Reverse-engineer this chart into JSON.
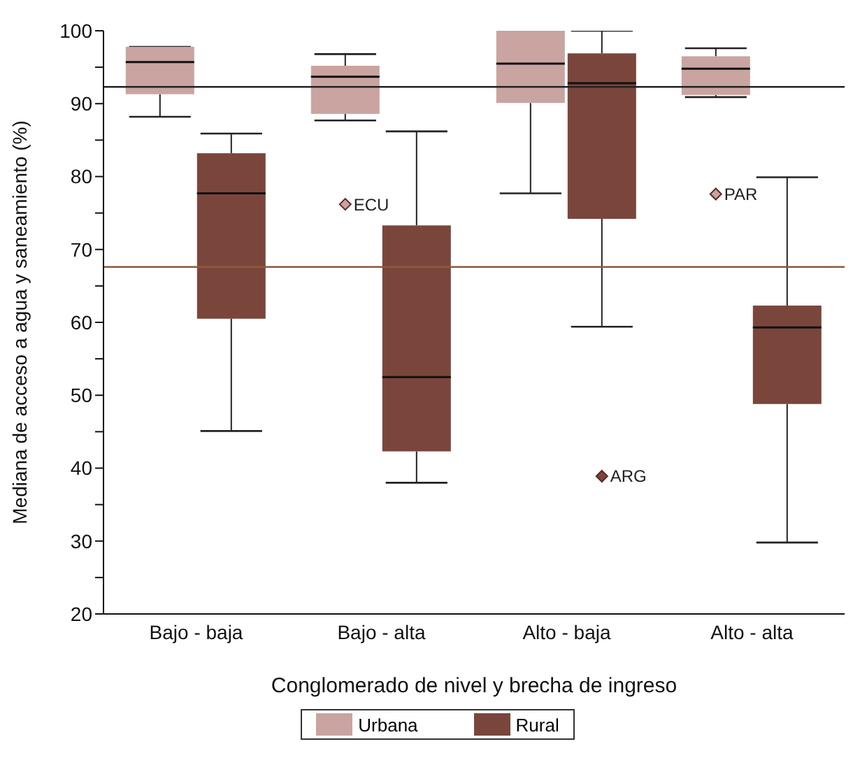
{
  "chart_data": {
    "type": "box",
    "xlabel": "Conglomerado de nivel y brecha de ingreso",
    "ylabel": "Mediana de acceso a agua y saneamiento (%)",
    "categories": [
      "Bajo - baja",
      "Bajo - alta",
      "Alto - baja",
      "Alto - alta"
    ],
    "series": [
      {
        "name": "Urbana",
        "color": "#c9a4a1",
        "boxes": [
          {
            "low": 88.2,
            "q1": 91.3,
            "median": 95.7,
            "q3": 97.8,
            "high": 97.8
          },
          {
            "low": 87.7,
            "q1": 88.6,
            "median": 93.7,
            "q3": 95.2,
            "high": 96.8,
            "outliers": [
              76.2
            ]
          },
          {
            "low": 77.7,
            "q1": 90.1,
            "median": 95.5,
            "q3": 100,
            "high": 100
          },
          {
            "low": 90.9,
            "q1": 91.2,
            "median": 94.8,
            "q3": 96.5,
            "high": 97.6,
            "outliers": [
              77.6
            ]
          }
        ]
      },
      {
        "name": "Rural",
        "color": "#7a463c",
        "boxes": [
          {
            "low": 45.1,
            "q1": 60.5,
            "median": 77.7,
            "q3": 83.2,
            "high": 85.9
          },
          {
            "low": 38.0,
            "q1": 42.3,
            "median": 52.5,
            "q3": 73.3,
            "high": 86.2
          },
          {
            "low": 59.4,
            "q1": 74.2,
            "median": 92.8,
            "q3": 96.9,
            "high": 100,
            "outliers": [
              38.9
            ]
          },
          {
            "low": 29.8,
            "q1": 48.8,
            "median": 59.3,
            "q3": 62.3,
            "high": 79.9
          }
        ]
      }
    ],
    "annotations": [
      "ECU",
      "PAR",
      "ARG"
    ],
    "ref_lines": [
      {
        "axis": "y",
        "value": 92.3,
        "color": "#222222"
      },
      {
        "axis": "y",
        "value": 67.6,
        "color": "#8b5a3c"
      }
    ],
    "ylim": [
      20,
      100
    ],
    "yticks": [
      20,
      {
        "value": 25,
        "label": null
      },
      30,
      {
        "value": 35,
        "label": null
      },
      40,
      {
        "value": 45,
        "label": null
      },
      50,
      {
        "value": 55,
        "label": null
      },
      60,
      {
        "value": 65,
        "label": null
      },
      70,
      {
        "value": 75,
        "label": null
      },
      80,
      {
        "value": 85,
        "label": null
      },
      90,
      {
        "value": 95,
        "label": null
      },
      100
    ],
    "grid": false,
    "legend": "bottom"
  }
}
